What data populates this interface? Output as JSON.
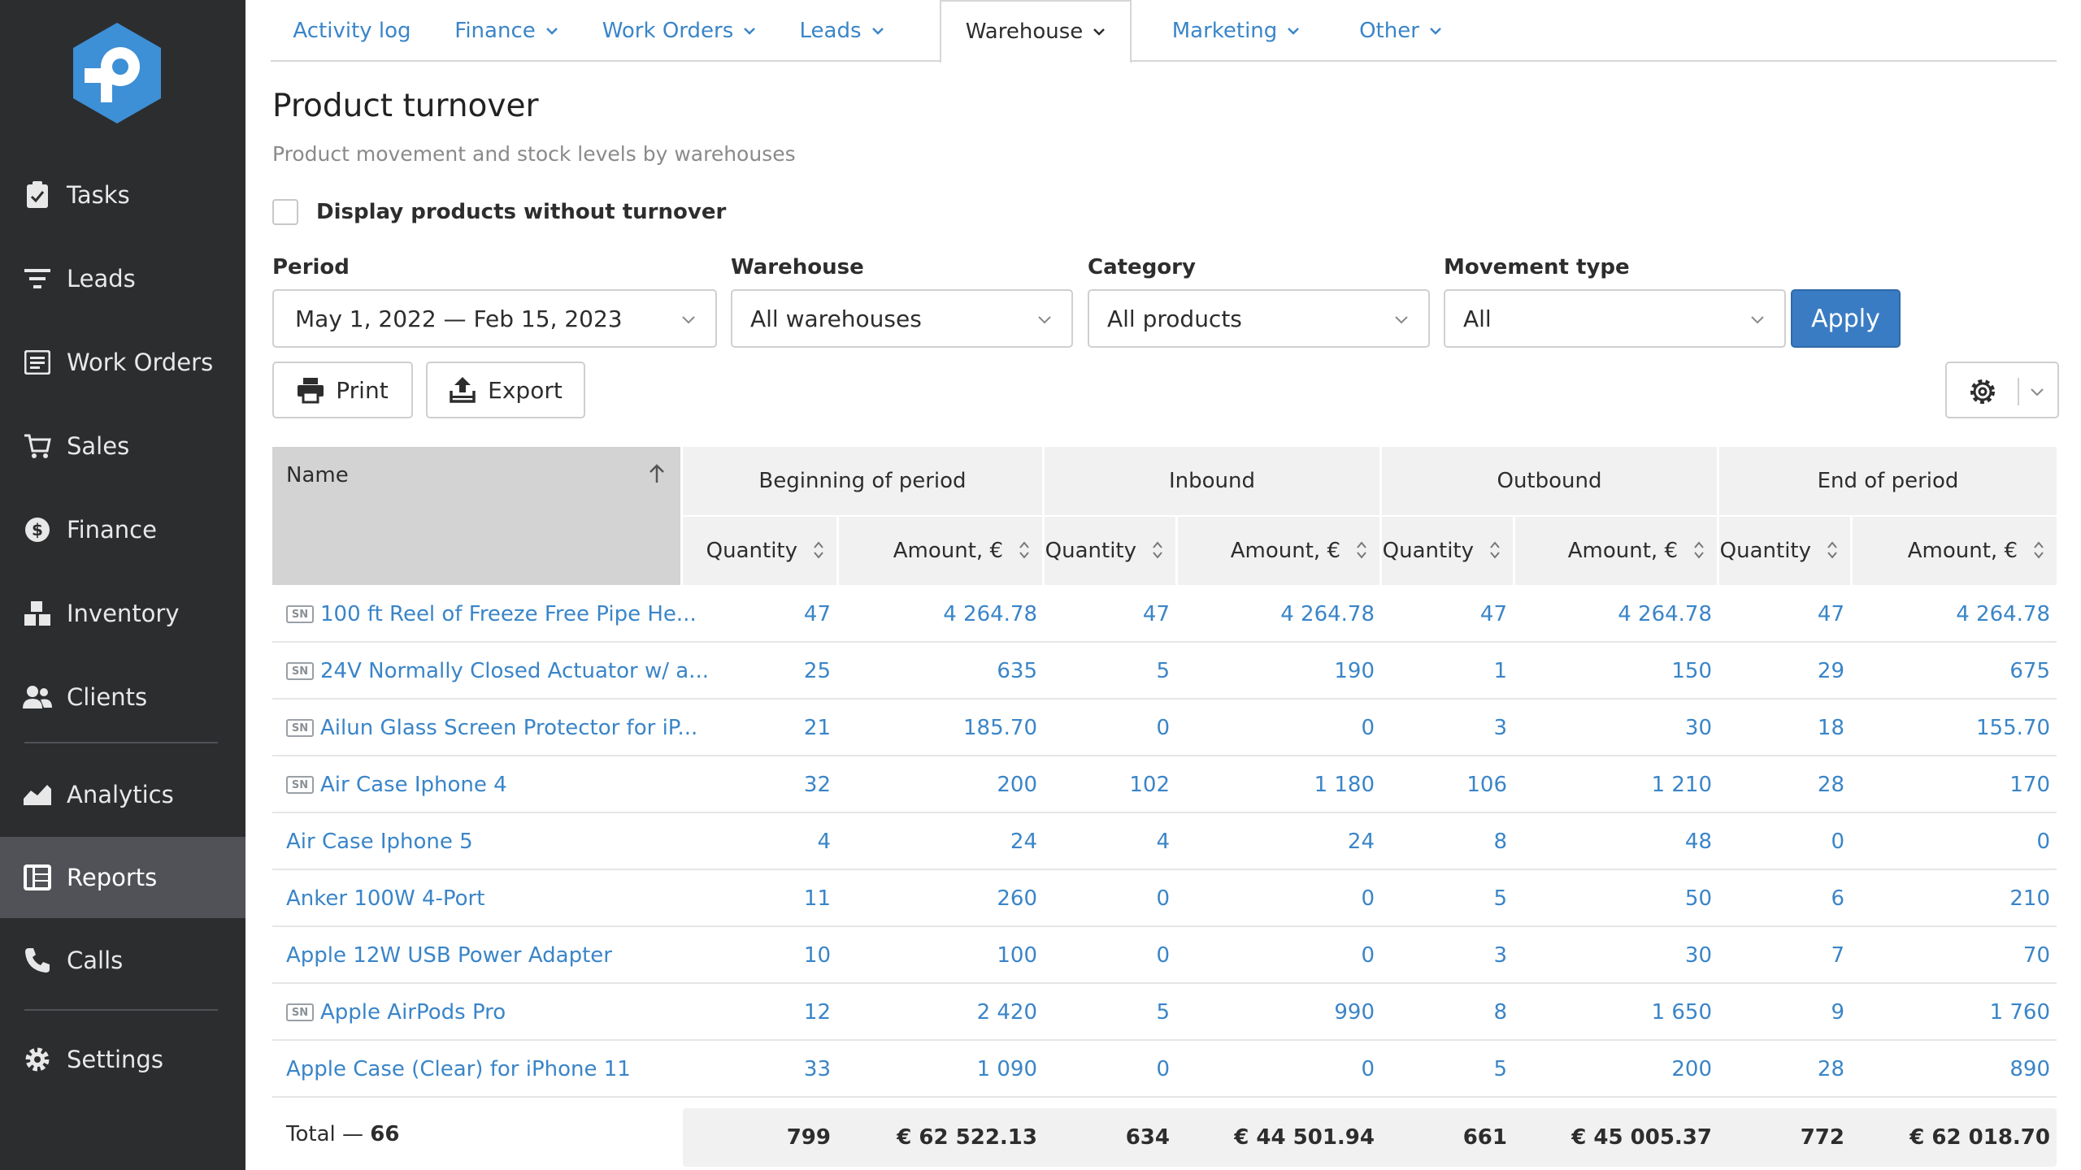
{
  "sidebar": {
    "items": [
      {
        "label": "Tasks",
        "icon": "clipboard-check-icon"
      },
      {
        "label": "Leads",
        "icon": "filter-icon"
      },
      {
        "label": "Work Orders",
        "icon": "work-order-icon"
      },
      {
        "label": "Sales",
        "icon": "cart-icon"
      },
      {
        "label": "Finance",
        "icon": "dollar-circle-icon"
      },
      {
        "label": "Inventory",
        "icon": "boxes-icon"
      },
      {
        "label": "Clients",
        "icon": "users-icon"
      },
      {
        "label": "Analytics",
        "icon": "area-chart-icon"
      },
      {
        "label": "Reports",
        "icon": "report-grid-icon"
      },
      {
        "label": "Calls",
        "icon": "phone-icon"
      },
      {
        "label": "Settings",
        "icon": "gear-icon"
      }
    ],
    "active": "Reports"
  },
  "tabs": [
    {
      "label": "Activity log"
    },
    {
      "label": "Finance"
    },
    {
      "label": "Work Orders"
    },
    {
      "label": "Leads"
    },
    {
      "label": "Warehouse"
    },
    {
      "label": "Marketing"
    },
    {
      "label": "Other"
    }
  ],
  "active_tab": "Warehouse",
  "page": {
    "title": "Product turnover",
    "subtitle": "Product movement and stock levels by warehouses"
  },
  "checkbox": {
    "label": "Display products without turnover",
    "checked": false
  },
  "filters": {
    "period": {
      "label": "Period",
      "value": "May 1, 2022 — Feb 15, 2023"
    },
    "warehouse": {
      "label": "Warehouse",
      "value": "All warehouses"
    },
    "category": {
      "label": "Category",
      "value": "All products"
    },
    "movement": {
      "label": "Movement type",
      "value": "All"
    },
    "apply_label": "Apply"
  },
  "toolbar": {
    "print_label": "Print",
    "export_label": "Export"
  },
  "table": {
    "name_header": "Name",
    "groups": [
      "Beginning of period",
      "Inbound",
      "Outbound",
      "End of period"
    ],
    "subheaders": [
      "Quantity",
      "Amount, €",
      "Quantity",
      "Amount, €",
      "Quantity",
      "Amount, €",
      "Quantity",
      "Amount, €"
    ],
    "sn_badge": "SN",
    "rows": [
      {
        "sn": true,
        "name": "100 ft Reel of Freeze Free Pipe He...",
        "values": [
          "47",
          "4 264.78",
          "47",
          "4 264.78",
          "47",
          "4 264.78",
          "47",
          "4 264.78"
        ]
      },
      {
        "sn": true,
        "name": "24V Normally Closed Actuator w/ a...",
        "values": [
          "25",
          "635",
          "5",
          "190",
          "1",
          "150",
          "29",
          "675"
        ]
      },
      {
        "sn": true,
        "name": "Ailun Glass Screen Protector for iP...",
        "values": [
          "21",
          "185.70",
          "0",
          "0",
          "3",
          "30",
          "18",
          "155.70"
        ]
      },
      {
        "sn": true,
        "name": "Air Case Iphone 4",
        "values": [
          "32",
          "200",
          "102",
          "1 180",
          "106",
          "1 210",
          "28",
          "170"
        ]
      },
      {
        "sn": false,
        "name": "Air Case Iphone 5",
        "values": [
          "4",
          "24",
          "4",
          "24",
          "8",
          "48",
          "0",
          "0"
        ]
      },
      {
        "sn": false,
        "name": "Anker 100W 4-Port",
        "values": [
          "11",
          "260",
          "0",
          "0",
          "5",
          "50",
          "6",
          "210"
        ]
      },
      {
        "sn": false,
        "name": "Apple 12W USB Power Adapter",
        "values": [
          "10",
          "100",
          "0",
          "0",
          "3",
          "30",
          "7",
          "70"
        ]
      },
      {
        "sn": true,
        "name": "Apple AirPods Pro",
        "values": [
          "12",
          "2 420",
          "5",
          "990",
          "8",
          "1 650",
          "9",
          "1 760"
        ]
      },
      {
        "sn": false,
        "name": "Apple Case (Clear) for iPhone 11",
        "values": [
          "33",
          "1 090",
          "0",
          "0",
          "5",
          "200",
          "28",
          "890"
        ]
      }
    ],
    "total_label": "Total — ",
    "total_count": "66",
    "totals": [
      "799",
      "€ 62 522.13",
      "634",
      "€ 44 501.94",
      "661",
      "€ 45 005.37",
      "772",
      "€ 62 018.70"
    ]
  },
  "colors": {
    "sidebar_bg": "#2c2d2f",
    "active_nav": "#505257",
    "link": "#3a85c8",
    "apply": "#3a7cc3",
    "logo": "#3d8fd6"
  }
}
